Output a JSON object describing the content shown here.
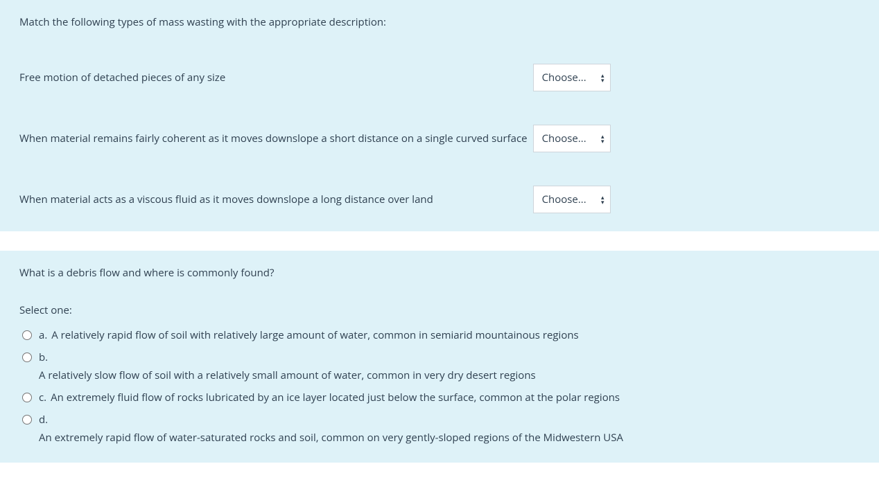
{
  "colors": {
    "panel_bg": "#def2f8",
    "page_bg": "#ffffff",
    "text": "#2f4050",
    "select_bg": "#ffffff",
    "select_border": "#ced4da"
  },
  "q1": {
    "prompt": "Match the following types of mass wasting with the appropriate description:",
    "select_placeholder": "Choose...",
    "items": [
      {
        "text": "Free motion of detached pieces of any size"
      },
      {
        "text": "When material remains fairly coherent as it moves downslope a short distance on a single curved surface"
      },
      {
        "text": "When material acts as a viscous fluid as it moves downslope a long distance over land"
      }
    ]
  },
  "q2": {
    "prompt": "What is a debris flow and where is commonly found?",
    "select_one_label": "Select one:",
    "options": [
      {
        "letter": "a.",
        "text": "A relatively rapid flow of soil with relatively large amount of water, common in semiarid mountainous regions",
        "wrapped": false
      },
      {
        "letter": "b.",
        "text": "A relatively slow flow of soil with a relatively small amount of water, common in very dry desert regions",
        "wrapped": true
      },
      {
        "letter": "c.",
        "text": "An extremely fluid flow of rocks lubricated by an ice layer located just below the surface, common at the polar regions",
        "wrapped": false
      },
      {
        "letter": "d.",
        "text": "An extremely rapid flow of water-saturated rocks and soil, common on very gently-sloped regions of the Midwestern USA",
        "wrapped": true
      }
    ]
  }
}
